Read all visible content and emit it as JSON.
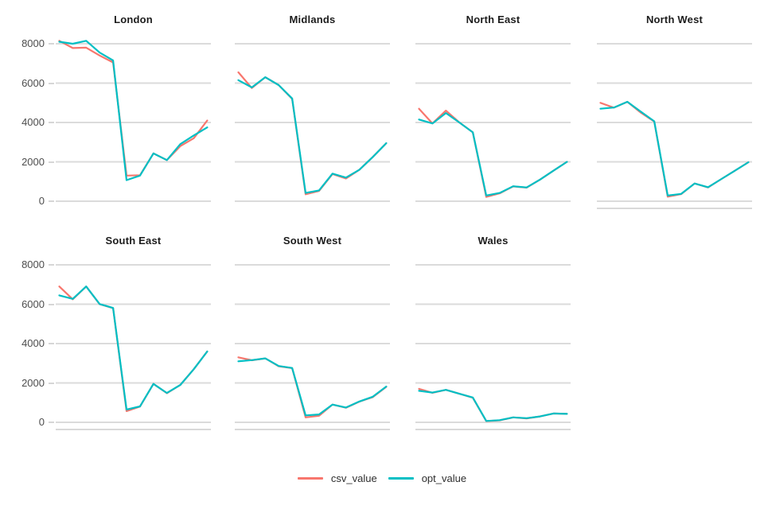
{
  "chart_data": {
    "type": "line",
    "title": "",
    "facet_variable_note": "small multiples by region",
    "n_points_per_series": 12,
    "x_tick_labels_visible": false,
    "grid": "horizontal-major-only",
    "y_axis": {
      "ticks": [
        "8000",
        "6000",
        "4000",
        "2000",
        "0"
      ],
      "values": [
        8000,
        6000,
        4000,
        2000,
        0
      ],
      "ylim": [
        0,
        8800
      ]
    },
    "legend": {
      "position": "bottom-center",
      "entries": [
        {
          "label": "csv_value",
          "color": "#F8766D"
        },
        {
          "label": "opt_value",
          "color": "#00BFC4"
        }
      ]
    },
    "style": {
      "grid_color": "#dbdbdb",
      "axis_line_color": "#d9d9d9",
      "axis_text_color": "#4d4d4d",
      "title_color": "#1c1c1c",
      "background": "#ffffff"
    },
    "facets": [
      {
        "title": "London",
        "row": 0,
        "col": 0,
        "axis_line": false,
        "series": {
          "csv_value": [
            8150,
            7780,
            7800,
            7400,
            7050,
            1300,
            1320,
            2430,
            2090,
            2800,
            3200,
            4100
          ],
          "opt_value": [
            8100,
            8000,
            8150,
            7550,
            7150,
            1070,
            1300,
            2430,
            2090,
            2900,
            3340,
            3750
          ]
        }
      },
      {
        "title": "Midlands",
        "row": 0,
        "col": 1,
        "axis_line": false,
        "series": {
          "csv_value": [
            6550,
            5750,
            6300,
            5900,
            5200,
            350,
            520,
            1380,
            1150,
            1600,
            2250,
            2950
          ],
          "opt_value": [
            6150,
            5780,
            6300,
            5900,
            5220,
            420,
            550,
            1400,
            1200,
            1600,
            2250,
            2950
          ]
        }
      },
      {
        "title": "North East",
        "row": 0,
        "col": 2,
        "axis_line": false,
        "series": {
          "csv_value": [
            4700,
            3950,
            4600,
            4000,
            3500,
            220,
            400,
            750,
            690,
            1100,
            1550,
            2000
          ],
          "opt_value": [
            4150,
            3950,
            4480,
            4000,
            3500,
            290,
            420,
            760,
            700,
            1100,
            1550,
            2000
          ]
        }
      },
      {
        "title": "North West",
        "row": 0,
        "col": 3,
        "axis_line": true,
        "series": {
          "csv_value": [
            5000,
            4750,
            5050,
            4500,
            4050,
            230,
            360,
            900,
            700,
            1130,
            1550,
            1980
          ],
          "opt_value": [
            4700,
            4760,
            5050,
            4550,
            4060,
            290,
            370,
            900,
            710,
            1130,
            1550,
            1980
          ]
        }
      },
      {
        "title": "South East",
        "row": 1,
        "col": 0,
        "axis_line": true,
        "series": {
          "csv_value": [
            6900,
            6250,
            6900,
            6000,
            5800,
            570,
            800,
            1950,
            1480,
            1900,
            2700,
            3600
          ],
          "opt_value": [
            6450,
            6270,
            6900,
            6010,
            5810,
            650,
            810,
            1950,
            1490,
            1900,
            2700,
            3600
          ]
        }
      },
      {
        "title": "South West",
        "row": 1,
        "col": 1,
        "axis_line": true,
        "series": {
          "csv_value": [
            3300,
            3150,
            3250,
            2850,
            2750,
            250,
            330,
            900,
            740,
            1050,
            1280,
            1800
          ],
          "opt_value": [
            3100,
            3160,
            3250,
            2860,
            2760,
            350,
            400,
            900,
            750,
            1060,
            1300,
            1820
          ]
        }
      },
      {
        "title": "Wales",
        "row": 1,
        "col": 2,
        "axis_line": true,
        "series": {
          "csv_value": [
            1700,
            1500,
            1650,
            1450,
            1250,
            60,
            100,
            250,
            200,
            300,
            450,
            430
          ],
          "opt_value": [
            1600,
            1510,
            1650,
            1450,
            1260,
            70,
            110,
            250,
            210,
            300,
            450,
            430
          ]
        }
      }
    ]
  }
}
